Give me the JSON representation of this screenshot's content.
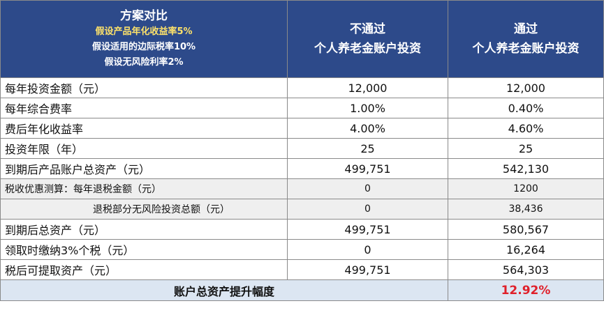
{
  "header": {
    "title": "方案对比",
    "assumptions": [
      "假设产品年化收益率5%",
      "假设适用的边际税率10%",
      "假设无风险利率2%"
    ],
    "col_without": [
      "不通过",
      "个人养老金账户投资"
    ],
    "col_with": [
      "通过",
      "个人养老金账户投资"
    ]
  },
  "rows": [
    {
      "label": "每年投资金额（元）",
      "without": "12,000",
      "with": "12,000"
    },
    {
      "label": "每年综合费率",
      "without": "1.00%",
      "with": "0.40%"
    },
    {
      "label": "费后年化收益率",
      "without": "4.00%",
      "with": "4.60%"
    },
    {
      "label": "投资年限（年）",
      "without": "25",
      "with": "25"
    },
    {
      "label": "到期后产品账户总资产（元）",
      "without": "499,751",
      "with": "542,130"
    },
    {
      "label": "税收优惠测算：每年退税金额（元）",
      "without": "0",
      "with": "1200"
    },
    {
      "label": "退税部分无风险投资总额（元）",
      "without": "0",
      "with": "38,436"
    },
    {
      "label": "到期后总资产（元）",
      "without": "499,751",
      "with": "580,567"
    },
    {
      "label": "领取时缴纳3%个税（元）",
      "without": "0",
      "with": "16,264"
    },
    {
      "label": "税后可提取资产（元）",
      "without": "499,751",
      "with": "564,303"
    }
  ],
  "footer": {
    "label": "账户总资产提升幅度",
    "value": "12.92%"
  },
  "colors": {
    "header_bg": "#2d4a8a",
    "assumption_highlight": "#ffe36a",
    "footer_bg": "#dce6f2",
    "highlight_red": "#e0202a"
  }
}
